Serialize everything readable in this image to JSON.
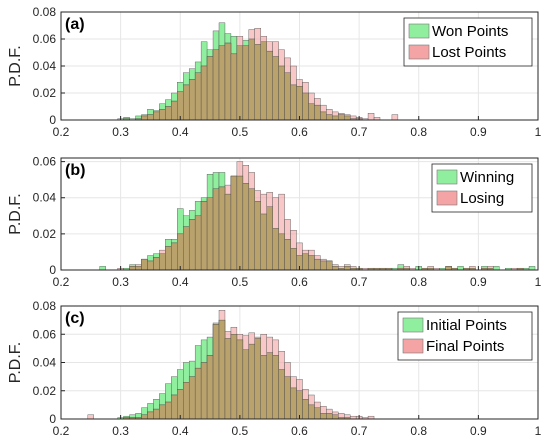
{
  "colors": {
    "series_a_fill": "#90ee9f",
    "series_b_fill": "#f4a4a4",
    "overlap_tint": "#b8a06a",
    "axis": "#262626",
    "grid": "#e6e6e6"
  },
  "chart_data": [
    {
      "type": "bar",
      "panel": "(a)",
      "ylabel": "P.D.F.",
      "xlim": [
        0.2,
        1.0
      ],
      "ylim": [
        0,
        0.08
      ],
      "xticks": [
        "0.2",
        "0.3",
        "0.4",
        "0.5",
        "0.6",
        "0.7",
        "0.8",
        "0.9",
        "1"
      ],
      "yticks": [
        "0",
        "0.02",
        "0.04",
        "0.06",
        "0.08"
      ],
      "grid": true,
      "legend_position": "top-right",
      "bin_width": 0.01,
      "x": [
        0.3,
        0.31,
        0.32,
        0.33,
        0.34,
        0.35,
        0.36,
        0.37,
        0.38,
        0.39,
        0.4,
        0.41,
        0.42,
        0.43,
        0.44,
        0.45,
        0.46,
        0.47,
        0.48,
        0.49,
        0.5,
        0.51,
        0.52,
        0.53,
        0.54,
        0.55,
        0.56,
        0.57,
        0.58,
        0.59,
        0.6,
        0.61,
        0.62,
        0.63,
        0.64,
        0.65,
        0.66,
        0.67,
        0.68,
        0.69,
        0.7,
        0.71,
        0.72,
        0.73,
        0.74,
        0.75,
        0.76
      ],
      "series": [
        {
          "name": "Won Points",
          "values": [
            0.001,
            0.002,
            0.001,
            0.003,
            0.004,
            0.008,
            0.007,
            0.012,
            0.015,
            0.02,
            0.028,
            0.035,
            0.038,
            0.043,
            0.058,
            0.052,
            0.066,
            0.072,
            0.064,
            0.062,
            0.055,
            0.059,
            0.06,
            0.056,
            0.058,
            0.051,
            0.047,
            0.04,
            0.035,
            0.026,
            0.025,
            0.02,
            0.012,
            0.011,
            0.006,
            0.004,
            0.003,
            0.004,
            0.003,
            0.001,
            0.001,
            0.0,
            0.0,
            0.0,
            0.0,
            0.0,
            0.0
          ]
        },
        {
          "name": "Lost Points",
          "values": [
            0.0,
            0.001,
            0.0,
            0.001,
            0.003,
            0.004,
            0.006,
            0.008,
            0.01,
            0.014,
            0.021,
            0.026,
            0.03,
            0.035,
            0.04,
            0.047,
            0.052,
            0.055,
            0.057,
            0.049,
            0.062,
            0.055,
            0.067,
            0.068,
            0.062,
            0.058,
            0.058,
            0.052,
            0.046,
            0.04,
            0.03,
            0.028,
            0.02,
            0.016,
            0.011,
            0.008,
            0.006,
            0.005,
            0.004,
            0.003,
            0.002,
            0.001,
            0.005,
            0.002,
            0.0,
            0.0,
            0.004
          ]
        }
      ]
    },
    {
      "type": "bar",
      "panel": "(b)",
      "ylabel": "P.D.F.",
      "xlim": [
        0.2,
        1.0
      ],
      "ylim": [
        0,
        0.062
      ],
      "xticks": [
        "0.2",
        "0.3",
        "0.4",
        "0.5",
        "0.6",
        "0.7",
        "0.8",
        "0.9",
        "1"
      ],
      "yticks": [
        "0",
        "0.02",
        "0.04",
        "0.06"
      ],
      "grid": true,
      "legend_position": "top-right",
      "bin_width": 0.01,
      "x": [
        0.27,
        0.28,
        0.29,
        0.3,
        0.31,
        0.32,
        0.33,
        0.34,
        0.35,
        0.36,
        0.37,
        0.38,
        0.39,
        0.4,
        0.41,
        0.42,
        0.43,
        0.44,
        0.45,
        0.46,
        0.47,
        0.48,
        0.49,
        0.5,
        0.51,
        0.52,
        0.53,
        0.54,
        0.55,
        0.56,
        0.57,
        0.58,
        0.59,
        0.6,
        0.61,
        0.62,
        0.63,
        0.64,
        0.65,
        0.66,
        0.67,
        0.68,
        0.69,
        0.7,
        0.71,
        0.72,
        0.73,
        0.74,
        0.75,
        0.76,
        0.77,
        0.78,
        0.79,
        0.8,
        0.81,
        0.82,
        0.83,
        0.84,
        0.85,
        0.86,
        0.87,
        0.88,
        0.89,
        0.9,
        0.91,
        0.92,
        0.93,
        0.94,
        0.95,
        0.96,
        0.97,
        0.98,
        0.99
      ],
      "series": [
        {
          "name": "Winning",
          "values": [
            0.002,
            0.0,
            0.0,
            0.0,
            0.001,
            0.003,
            0.002,
            0.006,
            0.008,
            0.009,
            0.009,
            0.017,
            0.017,
            0.034,
            0.03,
            0.033,
            0.038,
            0.04,
            0.053,
            0.054,
            0.054,
            0.042,
            0.052,
            0.052,
            0.048,
            0.045,
            0.038,
            0.031,
            0.035,
            0.023,
            0.02,
            0.017,
            0.012,
            0.008,
            0.009,
            0.008,
            0.006,
            0.005,
            0.005,
            0.002,
            0.001,
            0.002,
            0.001,
            0.001,
            0.0,
            0.001,
            0.001,
            0.001,
            0.001,
            0.001,
            0.003,
            0.001,
            0.0,
            0.002,
            0.001,
            0.001,
            0.0,
            0.001,
            0.002,
            0.001,
            0.002,
            0.001,
            0.001,
            0.0,
            0.002,
            0.001,
            0.002,
            0.0,
            0.001,
            0.0,
            0.001,
            0.001,
            0.002
          ]
        },
        {
          "name": "Losing",
          "values": [
            0.0,
            0.0,
            0.0,
            0.001,
            0.0,
            0.002,
            0.003,
            0.006,
            0.005,
            0.007,
            0.011,
            0.013,
            0.015,
            0.02,
            0.024,
            0.028,
            0.03,
            0.038,
            0.04,
            0.045,
            0.046,
            0.047,
            0.052,
            0.06,
            0.058,
            0.054,
            0.044,
            0.042,
            0.043,
            0.04,
            0.042,
            0.028,
            0.022,
            0.015,
            0.011,
            0.011,
            0.008,
            0.006,
            0.005,
            0.003,
            0.002,
            0.003,
            0.002,
            0.001,
            0.001,
            0.001,
            0.001,
            0.001,
            0.001,
            0.0,
            0.001,
            0.002,
            0.001,
            0.0,
            0.001,
            0.002,
            0.001,
            0.0,
            0.002,
            0.001,
            0.0,
            0.001,
            0.002,
            0.0,
            0.001,
            0.002,
            0.0,
            0.0,
            0.0,
            0.001,
            0.001,
            0.0,
            0.0
          ]
        }
      ]
    },
    {
      "type": "bar",
      "panel": "(c)",
      "ylabel": "P.D.F.",
      "xlim": [
        0.2,
        1.0
      ],
      "ylim": [
        0,
        0.08
      ],
      "xticks": [
        "0.2",
        "0.3",
        "0.4",
        "0.5",
        "0.6",
        "0.7",
        "0.8",
        "0.9",
        "1"
      ],
      "yticks": [
        "0",
        "0.02",
        "0.04",
        "0.06",
        "0.08"
      ],
      "grid": true,
      "legend_position": "top-right",
      "bin_width": 0.01,
      "x": [
        0.25,
        0.26,
        0.27,
        0.28,
        0.29,
        0.3,
        0.31,
        0.32,
        0.33,
        0.34,
        0.35,
        0.36,
        0.37,
        0.38,
        0.39,
        0.4,
        0.41,
        0.42,
        0.43,
        0.44,
        0.45,
        0.46,
        0.47,
        0.48,
        0.49,
        0.5,
        0.51,
        0.52,
        0.53,
        0.54,
        0.55,
        0.56,
        0.57,
        0.58,
        0.59,
        0.6,
        0.61,
        0.62,
        0.63,
        0.64,
        0.65,
        0.66,
        0.67,
        0.68,
        0.69,
        0.7,
        0.71,
        0.72
      ],
      "series": [
        {
          "name": "Initial Points",
          "values": [
            0.0,
            0.0,
            0.0,
            0.0,
            0.0,
            0.001,
            0.002,
            0.003,
            0.004,
            0.008,
            0.011,
            0.014,
            0.018,
            0.025,
            0.03,
            0.035,
            0.04,
            0.041,
            0.052,
            0.056,
            0.058,
            0.068,
            0.07,
            0.057,
            0.06,
            0.056,
            0.049,
            0.053,
            0.057,
            0.045,
            0.047,
            0.045,
            0.035,
            0.03,
            0.022,
            0.02,
            0.014,
            0.01,
            0.008,
            0.004,
            0.004,
            0.003,
            0.001,
            0.001,
            0.0,
            0.0,
            0.0,
            0.0
          ]
        },
        {
          "name": "Final Points",
          "values": [
            0.003,
            0.0,
            0.0,
            0.0,
            0.0,
            0.0,
            0.001,
            0.001,
            0.001,
            0.003,
            0.005,
            0.007,
            0.01,
            0.012,
            0.017,
            0.021,
            0.026,
            0.03,
            0.036,
            0.04,
            0.045,
            0.067,
            0.077,
            0.062,
            0.065,
            0.06,
            0.059,
            0.061,
            0.058,
            0.06,
            0.058,
            0.056,
            0.048,
            0.04,
            0.03,
            0.028,
            0.021,
            0.017,
            0.012,
            0.009,
            0.007,
            0.005,
            0.004,
            0.003,
            0.002,
            0.002,
            0.001,
            0.002
          ]
        }
      ]
    }
  ]
}
